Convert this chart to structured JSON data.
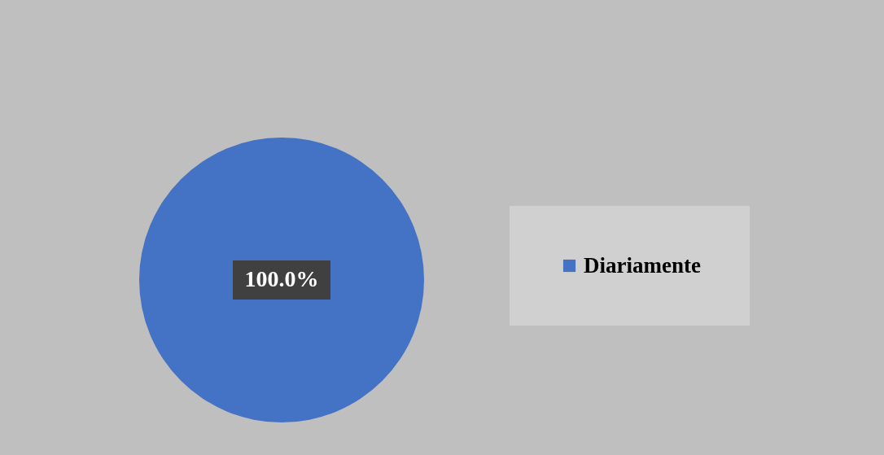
{
  "chart_data": {
    "type": "pie",
    "categories": [
      "Diariamente"
    ],
    "values": [
      100
    ],
    "colors": [
      "#4472c4"
    ],
    "value_labels": [
      "100.0%"
    ],
    "legend": "right"
  }
}
